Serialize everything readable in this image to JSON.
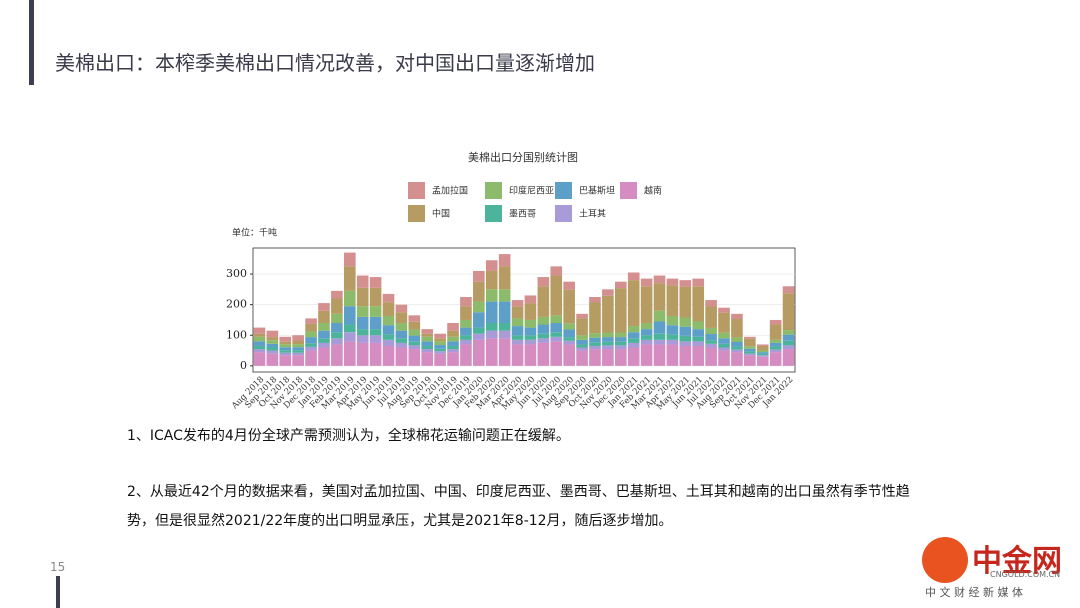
{
  "slide": {
    "title": "美棉出口：本榨季美棉出口情况改善，对中国出口量逐渐增加",
    "paragraphs": [
      "1、ICAC发布的4月份全球产需预测认为，全球棉花运输问题正在缓解。",
      "2、从最近42个月的数据来看，美国对孟加拉国、中国、印度尼西亚、墨西哥、巴基斯坦、土耳其和越南的出口虽然有季节性趋势，但是很显然2021/22年度的出口明显承压，尤其是2021年8-12月，随后逐步增加。"
    ],
    "page_number": "15",
    "logo": {
      "name": "中金网",
      "url": "CNGOLD.COM.CN",
      "slogan": "中 文 财 经 新 媒 体"
    }
  },
  "chart_data": {
    "type": "stacked-bar",
    "title": "美棉出口分国别统计图",
    "y_label": "单位：千吨",
    "categories": [
      "Aug 2018",
      "Sep 2018",
      "Oct 2018",
      "Nov 2018",
      "Dec 2018",
      "Jan 2019",
      "Feb 2019",
      "Mar 2019",
      "Apr 2019",
      "May 2019",
      "Jun 2019",
      "Jul 2019",
      "Aug 2019",
      "Sep 2019",
      "Oct 2019",
      "Nov 2019",
      "Dec 2019",
      "Jan 2020",
      "Feb 2020",
      "Mar 2020",
      "Apr 2020",
      "May 2020",
      "Jun 2020",
      "Jul 2020",
      "Aug 2020",
      "Sep 2020",
      "Oct 2020",
      "Nov 2020",
      "Dec 2020",
      "Jan 2021",
      "Feb 2021",
      "Mar 2021",
      "Apr 2021",
      "May 2021",
      "Jun 2021",
      "Jul 2021",
      "Aug 2021",
      "Sep 2021",
      "Oct 2021",
      "Nov 2021",
      "Dec 2021",
      "Jan 2022"
    ],
    "series": [
      {
        "name": "孟加拉国",
        "color": "#d48f8f",
        "values": [
          20,
          21,
          16,
          17,
          18,
          25,
          25,
          45,
          40,
          35,
          27,
          25,
          21,
          15,
          15,
          25,
          30,
          35,
          35,
          40,
          20,
          25,
          30,
          30,
          26,
          15,
          18,
          21,
          21,
          25,
          25,
          25,
          22,
          22,
          25,
          21,
          17,
          17,
          6,
          5,
          15,
          23
        ]
      },
      {
        "name": "印度尼西亚",
        "color": "#8dbb6c",
        "values": [
          15,
          12,
          10,
          10,
          18,
          25,
          30,
          50,
          35,
          35,
          30,
          25,
          20,
          15,
          12,
          15,
          25,
          35,
          40,
          40,
          25,
          25,
          25,
          25,
          20,
          15,
          15,
          15,
          15,
          20,
          20,
          35,
          30,
          30,
          25,
          20,
          18,
          15,
          8,
          5,
          10,
          15
        ]
      },
      {
        "name": "巴基斯坦",
        "color": "#5d9fc9",
        "values": [
          15,
          12,
          10,
          10,
          20,
          25,
          30,
          60,
          40,
          40,
          30,
          25,
          20,
          15,
          12,
          15,
          25,
          50,
          70,
          70,
          30,
          25,
          30,
          30,
          25,
          15,
          15,
          15,
          15,
          20,
          20,
          40,
          30,
          30,
          25,
          20,
          18,
          15,
          8,
          5,
          12,
          20
        ]
      },
      {
        "name": "越南",
        "color": "#d58cc1",
        "values": [
          45,
          40,
          35,
          35,
          50,
          60,
          70,
          80,
          75,
          75,
          65,
          60,
          55,
          45,
          40,
          45,
          70,
          85,
          90,
          90,
          70,
          70,
          75,
          80,
          70,
          50,
          55,
          55,
          55,
          60,
          70,
          70,
          70,
          65,
          65,
          60,
          50,
          45,
          35,
          30,
          45,
          55
        ]
      },
      {
        "name": "中国",
        "color": "#b69b62",
        "values": [
          10,
          10,
          8,
          12,
          25,
          40,
          50,
          80,
          60,
          60,
          45,
          35,
          25,
          10,
          10,
          20,
          45,
          65,
          60,
          75,
          40,
          55,
          100,
          130,
          110,
          55,
          100,
          120,
          145,
          150,
          120,
          90,
          100,
          100,
          115,
          70,
          65,
          60,
          25,
          15,
          50,
          120
        ]
      },
      {
        "name": "墨西哥",
        "color": "#4bb49b",
        "values": [
          10,
          10,
          8,
          8,
          12,
          15,
          20,
          25,
          20,
          20,
          18,
          15,
          12,
          10,
          8,
          10,
          15,
          20,
          25,
          25,
          15,
          15,
          15,
          15,
          12,
          10,
          12,
          12,
          12,
          15,
          15,
          20,
          18,
          18,
          15,
          12,
          12,
          10,
          8,
          5,
          10,
          15
        ]
      },
      {
        "name": "土耳其",
        "color": "#a99bd8",
        "values": [
          10,
          10,
          8,
          8,
          12,
          15,
          20,
          30,
          25,
          25,
          20,
          15,
          12,
          10,
          8,
          10,
          15,
          20,
          25,
          25,
          15,
          15,
          15,
          15,
          12,
          10,
          10,
          12,
          12,
          15,
          15,
          15,
          15,
          15,
          15,
          12,
          10,
          8,
          5,
          5,
          8,
          12
        ]
      }
    ],
    "ylim": [
      -20,
      385
    ],
    "yticks": [
      0,
      100,
      200,
      300
    ],
    "grid": true
  }
}
